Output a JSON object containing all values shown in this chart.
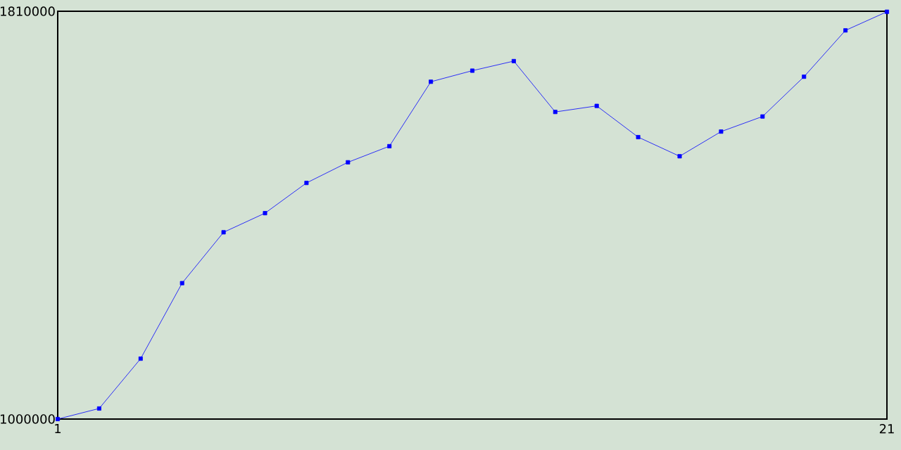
{
  "chart_data": {
    "type": "line",
    "x": [
      1,
      2,
      3,
      4,
      5,
      6,
      7,
      8,
      9,
      10,
      11,
      12,
      13,
      14,
      15,
      16,
      17,
      18,
      19,
      20,
      21
    ],
    "series": [
      {
        "color": "#0000ff",
        "values": [
          1000000,
          1021000,
          1120000,
          1270000,
          1371000,
          1409000,
          1469000,
          1510000,
          1542000,
          1670000,
          1692000,
          1711000,
          1610000,
          1622000,
          1560000,
          1522000,
          1571000,
          1601000,
          1680000,
          1772000,
          1809000
        ]
      }
    ],
    "xlim": [
      1,
      21
    ],
    "xticks": [
      1,
      21
    ],
    "ylim": [
      1000000,
      1810000
    ],
    "yticks": [
      1000000,
      1810000
    ],
    "marker": "square",
    "line_style": "solid"
  }
}
